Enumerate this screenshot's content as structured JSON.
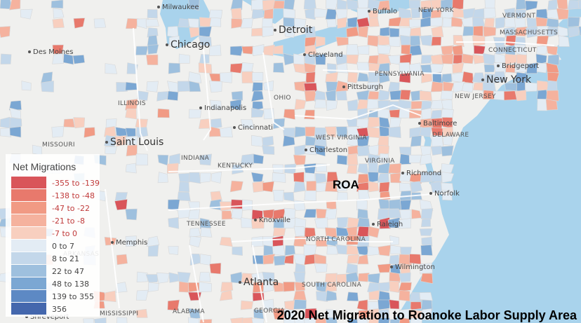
{
  "map": {
    "title": "2020 Net Migration to Roanoke Labor Supply Area",
    "marker_label": "ROA",
    "colors": {
      "water": "#a9d3ec",
      "land": "#f0f0ee",
      "county_border": "#d8d8d8",
      "state_border": "#ffffff"
    }
  },
  "legend": {
    "title": "Net Migrations",
    "items": [
      {
        "label": "-355 to -139",
        "color": "#d9555a",
        "text_color": "#c03a3a"
      },
      {
        "label": "-138 to -48",
        "color": "#e8796c",
        "text_color": "#c03a3a"
      },
      {
        "label": "-47 to -22",
        "color": "#f19a84",
        "text_color": "#c03a3a"
      },
      {
        "label": "-21 to -8",
        "color": "#f5b29e",
        "text_color": "#c03a3a"
      },
      {
        "label": "-7 to 0",
        "color": "#f8cfbf",
        "text_color": "#c03a3a"
      },
      {
        "label": "0 to 7",
        "color": "#e3ecf4",
        "text_color": "#444444"
      },
      {
        "label": "8 to 21",
        "color": "#c3d7ea",
        "text_color": "#444444"
      },
      {
        "label": "22 to 47",
        "color": "#9ec0de",
        "text_color": "#444444"
      },
      {
        "label": "48 to 138",
        "color": "#7ba7d3",
        "text_color": "#444444"
      },
      {
        "label": "139 to 355",
        "color": "#5d89c4",
        "text_color": "#444444"
      },
      {
        "label": "356",
        "color": "#4467ad",
        "text_color": "#444444"
      }
    ]
  },
  "cities": [
    {
      "name": "Milwaukee",
      "size": "small"
    },
    {
      "name": "Buffalo",
      "size": "small"
    },
    {
      "name": "NEW YORK",
      "size": "state"
    },
    {
      "name": "VERMONT",
      "size": "state"
    },
    {
      "name": "MASSACHUSETTS",
      "size": "state"
    },
    {
      "name": "Detroit",
      "size": "big"
    },
    {
      "name": "Des Moines",
      "size": "small"
    },
    {
      "name": "Chicago",
      "size": "big"
    },
    {
      "name": "Cleveland",
      "size": "small"
    },
    {
      "name": "CONNECTICUT",
      "size": "state"
    },
    {
      "name": "Bridgeport",
      "size": "small"
    },
    {
      "name": "PENNSYLVANIA",
      "size": "state"
    },
    {
      "name": "New York",
      "size": "big"
    },
    {
      "name": "Pittsburgh",
      "size": "small"
    },
    {
      "name": "ILLINOIS",
      "size": "state"
    },
    {
      "name": "OHIO",
      "size": "state"
    },
    {
      "name": "NEW JERSEY",
      "size": "state"
    },
    {
      "name": "Indianapolis",
      "size": "small"
    },
    {
      "name": "Baltimore",
      "size": "small"
    },
    {
      "name": "Cincinnati",
      "size": "small"
    },
    {
      "name": "DELAWARE",
      "size": "state"
    },
    {
      "name": "MISSOURI",
      "size": "state"
    },
    {
      "name": "WEST VIRGINIA",
      "size": "state"
    },
    {
      "name": "Saint Louis",
      "size": "big"
    },
    {
      "name": "Charleston",
      "size": "small"
    },
    {
      "name": "INDIANA",
      "size": "state"
    },
    {
      "name": "VIRGINIA",
      "size": "state"
    },
    {
      "name": "KENTUCKY",
      "size": "state"
    },
    {
      "name": "Richmond",
      "size": "small"
    },
    {
      "name": "Norfolk",
      "size": "small"
    },
    {
      "name": "TENNESSEE",
      "size": "state"
    },
    {
      "name": "Knoxville",
      "size": "small"
    },
    {
      "name": "Raleigh",
      "size": "small"
    },
    {
      "name": "Memphis",
      "size": "small"
    },
    {
      "name": "NORTH CAROLINA",
      "size": "state"
    },
    {
      "name": "ARKANSAS",
      "size": "state"
    },
    {
      "name": "Wilmington",
      "size": "small"
    },
    {
      "name": "Atlanta",
      "size": "big"
    },
    {
      "name": "SOUTH CAROLINA",
      "size": "state"
    },
    {
      "name": "MISSISSIPPI",
      "size": "state"
    },
    {
      "name": "ALABAMA",
      "size": "state"
    },
    {
      "name": "GEORGIA",
      "size": "state"
    },
    {
      "name": "Shreveport",
      "size": "small"
    }
  ]
}
